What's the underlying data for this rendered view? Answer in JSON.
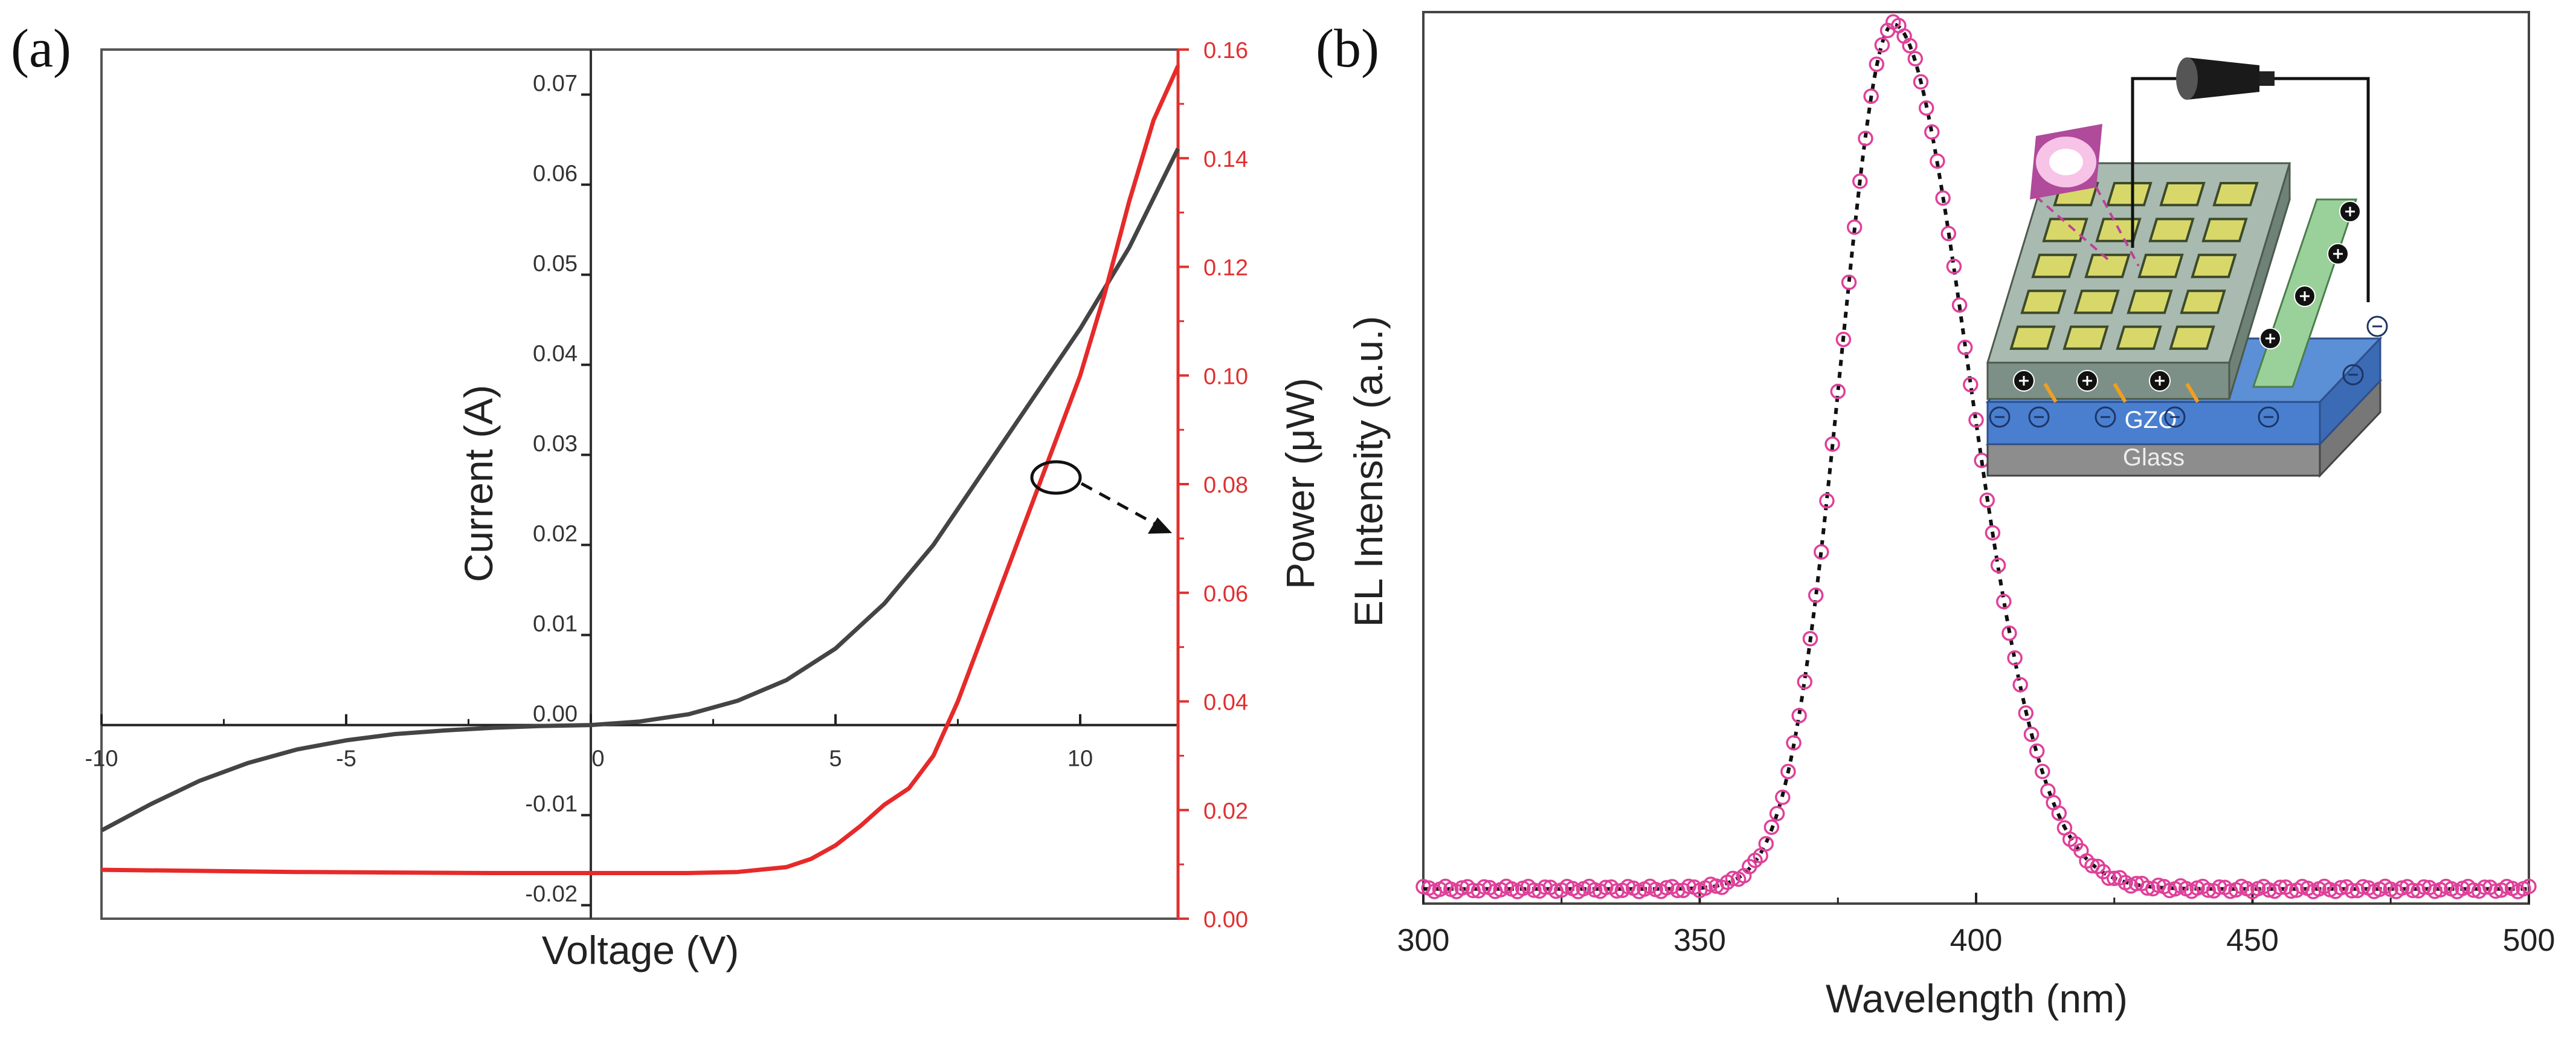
{
  "chart_data": [
    {
      "panel": "(a)",
      "type": "line",
      "xlabel": "Voltage (V)",
      "ylabel_left": "Current (A)",
      "ylabel_right": "Power (μW)",
      "xlim": [
        -10,
        12
      ],
      "ylim_left": [
        -0.0215,
        0.075
      ],
      "ylim_right": [
        0.0,
        0.16
      ],
      "x_ticks": [
        -10,
        -5,
        0,
        5,
        10
      ],
      "x_tick_labels": [
        "-10",
        "-5",
        "0",
        "5",
        "10"
      ],
      "y_left_ticks": [
        -0.02,
        -0.01,
        0.0,
        0.01,
        0.02,
        0.03,
        0.04,
        0.05,
        0.06,
        0.07
      ],
      "y_left_tick_labels": [
        "-0.02",
        "-0.01",
        "0.00",
        "0.01",
        "0.02",
        "0.03",
        "0.04",
        "0.05",
        "0.06",
        "0.07"
      ],
      "y_right_ticks": [
        0.0,
        0.02,
        0.04,
        0.06,
        0.08,
        0.1,
        0.12,
        0.14,
        0.16
      ],
      "y_right_tick_labels": [
        "0.00",
        "0.02",
        "0.04",
        "0.06",
        "0.08",
        "0.10",
        "0.12",
        "0.14",
        "0.16"
      ],
      "series": [
        {
          "name": "Current",
          "axis": "left",
          "color": "#444444",
          "x": [
            -10,
            -9,
            -8,
            -7,
            -6,
            -5,
            -4,
            -3,
            -2,
            -1,
            0,
            1,
            2,
            3,
            4,
            5,
            6,
            7,
            8,
            9,
            10,
            11,
            12
          ],
          "y": [
            -0.0117,
            -0.0088,
            -0.0062,
            -0.0042,
            -0.0027,
            -0.0017,
            -0.001,
            -0.0006,
            -0.0003,
            -0.0001,
            0.0,
            0.0004,
            0.0012,
            0.0027,
            0.005,
            0.0085,
            0.0135,
            0.02,
            0.028,
            0.036,
            0.044,
            0.053,
            0.064
          ]
        },
        {
          "name": "Power",
          "axis": "right",
          "color": "#e62a2a",
          "x": [
            -10,
            -8,
            -6,
            -4,
            -2,
            0,
            2,
            3,
            4,
            4.5,
            5,
            5.5,
            6,
            6.5,
            7,
            7.5,
            8,
            8.5,
            9,
            9.5,
            10,
            10.5,
            11,
            11.5,
            12
          ],
          "y": [
            0.009,
            0.0088,
            0.0086,
            0.0085,
            0.0084,
            0.0084,
            0.0084,
            0.0086,
            0.0095,
            0.011,
            0.0135,
            0.017,
            0.021,
            0.024,
            0.03,
            0.04,
            0.052,
            0.064,
            0.076,
            0.088,
            0.1,
            0.115,
            0.132,
            0.147,
            0.157
          ]
        }
      ],
      "annotation": "circle with dashed arrow pointing to right axis (Power)"
    },
    {
      "panel": "(b)",
      "type": "scatter",
      "xlabel": "Wavelength (nm)",
      "ylabel": "EL Intensity (a.u.)",
      "xlim": [
        300,
        500
      ],
      "ylim": [
        0,
        1.0
      ],
      "x_ticks": [
        300,
        350,
        400,
        450,
        500
      ],
      "x_tick_labels": [
        "300",
        "350",
        "400",
        "450",
        "500"
      ],
      "y_ticks": [],
      "series": [
        {
          "name": "EL spectrum",
          "marker": "open circle",
          "color": "#e0409a",
          "fit_line_color": "#111111",
          "peak_nm": 385,
          "peak_intensity": 1.0,
          "baseline": 0.005
        }
      ],
      "inset": {
        "labels": [
          "GZO",
          "Glass"
        ]
      }
    }
  ]
}
